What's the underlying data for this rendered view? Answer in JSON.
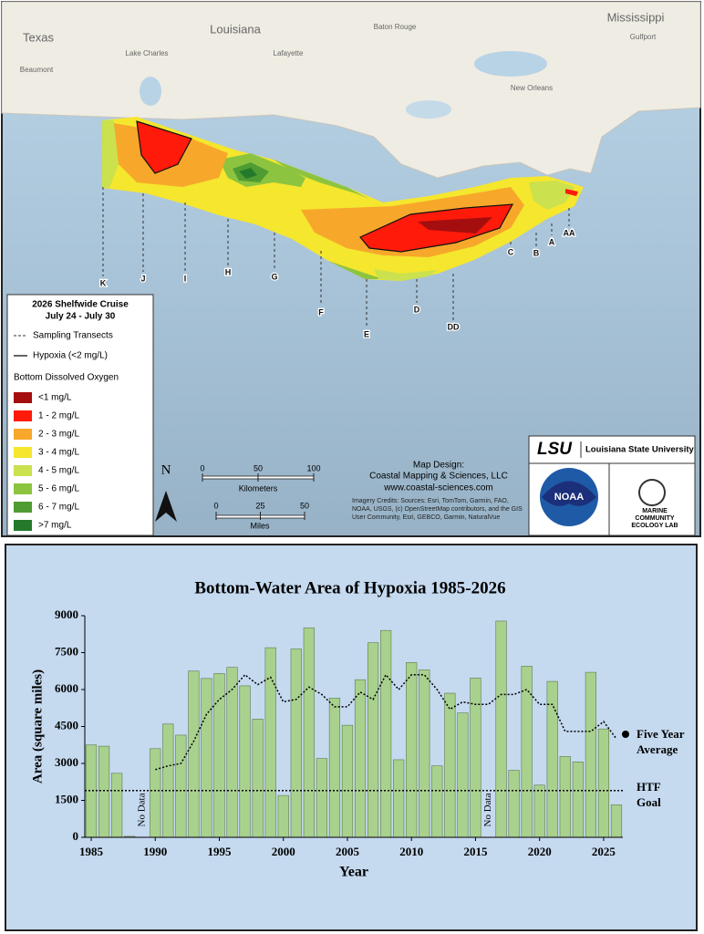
{
  "map": {
    "places": [
      "Texas",
      "Louisiana",
      "Mississippi",
      "Baton Rouge",
      "Lake Charles",
      "Lafayette",
      "Beaumont",
      "New Orleans",
      "Gulfport"
    ],
    "transects": [
      "K",
      "J",
      "I",
      "H",
      "G",
      "F",
      "E",
      "D",
      "DD",
      "C",
      "B",
      "A",
      "AA"
    ],
    "legend": {
      "title": "2026 Shelfwide Cruise",
      "dates": "July 24 - July 30",
      "transects": "Sampling Transects",
      "hypoxia": "Hypoxia (<2 mg/L)",
      "oxygen_title": "Bottom Dissolved Oxygen",
      "classes": [
        {
          "label": "<1 mg/L",
          "color": "#a50e0e"
        },
        {
          "label": "1 - 2 mg/L",
          "color": "#ff1a0a"
        },
        {
          "label": "2 - 3 mg/L",
          "color": "#f7a82a"
        },
        {
          "label": "3 - 4 mg/L",
          "color": "#f5e62e"
        },
        {
          "label": "4 - 5 mg/L",
          "color": "#cbe14e"
        },
        {
          "label": "5 - 6 mg/L",
          "color": "#8dc43f"
        },
        {
          "label": "6 - 7 mg/L",
          "color": "#4f9c32"
        },
        {
          "label": ">7 mg/L",
          "color": "#247a2a"
        }
      ]
    },
    "north": "N",
    "scale": {
      "km_label": "Kilometers",
      "km_ticks": [
        0,
        50,
        100
      ],
      "mi_label": "Miles",
      "mi_ticks": [
        0,
        25,
        50
      ]
    },
    "credits": {
      "design": "Map Design:",
      "company": "Coastal Mapping & Sciences, LLC",
      "website": "www.coastal-sciences.com",
      "imagery": "Imagery Credits: Sources: Esri, TomTom, Garmin, FAO, NOAA, USGS, (c) OpenStreetMap contributors, and the GIS User Community, Esri, GEBCO, Garmin, NaturalVue"
    },
    "logos": {
      "lsu": "LSU",
      "lsu_name": "Louisiana State University",
      "noaa": "NOAA",
      "mcel": "MARINE COMMUNITY ECOLOGY LAB"
    }
  },
  "chart_data": {
    "type": "bar",
    "title": "Bottom-Water Area of Hypoxia 1985-2026",
    "x_label": "Year",
    "y_label": "Area (square miles)",
    "x": [
      1985,
      1986,
      1987,
      1988,
      1989,
      1990,
      1991,
      1992,
      1993,
      1994,
      1995,
      1996,
      1997,
      1998,
      1999,
      2000,
      2001,
      2002,
      2003,
      2004,
      2005,
      2006,
      2007,
      2008,
      2009,
      2010,
      2011,
      2012,
      2013,
      2014,
      2015,
      2016,
      2017,
      2018,
      2019,
      2020,
      2021,
      2022,
      2023,
      2024,
      2025,
      2026
    ],
    "values": [
      3750,
      3700,
      2600,
      40,
      null,
      3600,
      4600,
      4150,
      6750,
      6450,
      6650,
      6900,
      6150,
      4800,
      7700,
      1700,
      7650,
      8500,
      3200,
      5650,
      4550,
      6400,
      7900,
      8400,
      3150,
      7100,
      6800,
      2900,
      5850,
      5050,
      6470,
      null,
      8780,
      2720,
      6950,
      2120,
      6330,
      3280,
      3060,
      6700,
      4400,
      1320
    ],
    "color": "#a9d18e",
    "average": {
      "name": "Five Year Average",
      "color": "#000000",
      "values": [
        null,
        null,
        null,
        null,
        null,
        2750,
        2900,
        3000,
        3900,
        5000,
        5600,
        6000,
        6600,
        6200,
        6500,
        5500,
        5600,
        6100,
        5800,
        5300,
        5300,
        5900,
        5600,
        6600,
        6000,
        6600,
        6600,
        6000,
        5200,
        5500,
        5400,
        5400,
        5800,
        5800,
        6000,
        5400,
        5400,
        4300,
        4300,
        4300,
        4700,
        4000
      ]
    },
    "goal": {
      "name": "HTF Goal",
      "value": 1900
    },
    "no_data": [
      {
        "text": "No Data",
        "x": 1989
      },
      {
        "text": "No Data",
        "x": 2016
      }
    ],
    "xlim": [
      1984.5,
      2026.5
    ],
    "xticks": [
      1985,
      1990,
      1995,
      2000,
      2005,
      2010,
      2015,
      2020,
      2025
    ],
    "ylim": [
      0,
      9000
    ],
    "yticks": [
      0,
      1500,
      3000,
      4500,
      6000,
      7500,
      9000
    ]
  }
}
